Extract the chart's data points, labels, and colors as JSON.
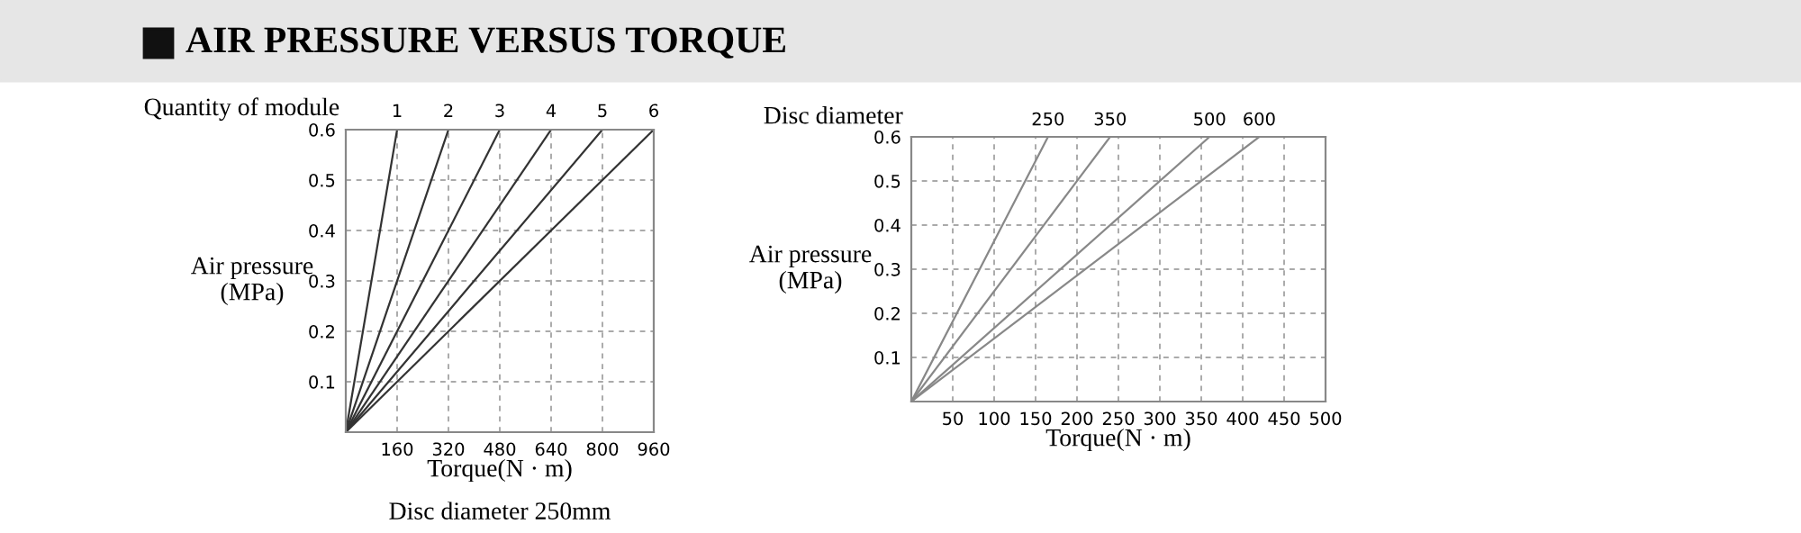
{
  "chart_data": [
    {
      "type": "line",
      "title": "AIR PRESSURE VERSUS TORQUE",
      "legend_title": "Quantity of module",
      "xlabel": "Torque(N · m)",
      "ylabel": "Air pressure\n(MPa)",
      "annotations": [
        "Disc diameter 250mm"
      ],
      "xlim": [
        0,
        960
      ],
      "ylim": [
        0,
        0.6
      ],
      "xticks": [
        160,
        320,
        480,
        640,
        800,
        960
      ],
      "yticks": [
        0.1,
        0.2,
        0.3,
        0.4,
        0.5,
        0.6
      ],
      "grid": true,
      "line_style": "solid",
      "series": [
        {
          "name": "1",
          "color": "#333333",
          "x": [
            0,
            160
          ],
          "values": [
            0,
            0.6
          ]
        },
        {
          "name": "2",
          "color": "#333333",
          "x": [
            0,
            320
          ],
          "values": [
            0,
            0.6
          ]
        },
        {
          "name": "3",
          "color": "#333333",
          "x": [
            0,
            480
          ],
          "values": [
            0,
            0.6
          ]
        },
        {
          "name": "4",
          "color": "#333333",
          "x": [
            0,
            640
          ],
          "values": [
            0,
            0.6
          ]
        },
        {
          "name": "5",
          "color": "#333333",
          "x": [
            0,
            800
          ],
          "values": [
            0,
            0.6
          ]
        },
        {
          "name": "6",
          "color": "#333333",
          "x": [
            0,
            960
          ],
          "values": [
            0,
            0.6
          ]
        }
      ]
    },
    {
      "type": "line",
      "legend_title": "Disc diameter",
      "xlabel": "Torque(N · m)",
      "ylabel": "Air pressure\n(MPa)",
      "xlim": [
        0,
        500
      ],
      "ylim": [
        0,
        0.6
      ],
      "xticks": [
        50,
        100,
        150,
        200,
        250,
        300,
        350,
        400,
        450,
        500
      ],
      "yticks": [
        0.1,
        0.2,
        0.3,
        0.4,
        0.5,
        0.6
      ],
      "grid": true,
      "line_style": "solid",
      "series": [
        {
          "name": "250",
          "color": "#888888",
          "x": [
            0,
            165
          ],
          "values": [
            0,
            0.6
          ]
        },
        {
          "name": "350",
          "color": "#888888",
          "x": [
            0,
            240
          ],
          "values": [
            0,
            0.6
          ]
        },
        {
          "name": "500",
          "color": "#888888",
          "x": [
            0,
            360
          ],
          "values": [
            0,
            0.6
          ]
        },
        {
          "name": "600",
          "color": "#888888",
          "x": [
            0,
            420
          ],
          "values": [
            0,
            0.6
          ]
        }
      ]
    }
  ]
}
